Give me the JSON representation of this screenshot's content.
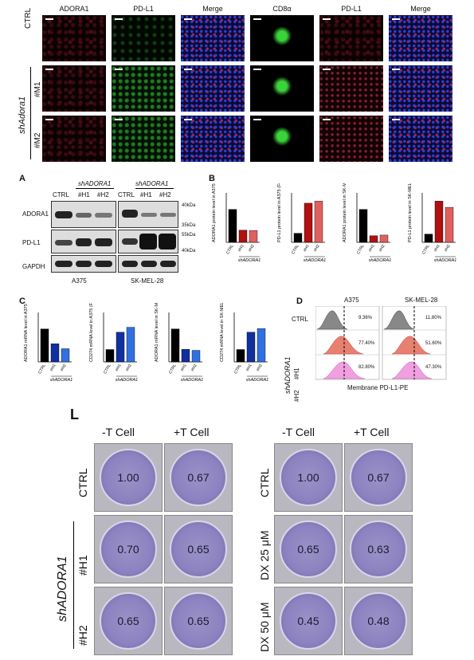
{
  "if_panel": {
    "col_headers": [
      "ADORA1",
      "PD-L1",
      "Merge",
      "CD8α",
      "PD-L1",
      "Merge"
    ],
    "row_labels": [
      "CTRL",
      "#M1",
      "#M2"
    ],
    "group_label": "shAdora1"
  },
  "panel_A": {
    "letter": "A",
    "group1": "shADORA1",
    "group2": "shADORA1",
    "lanes": [
      "CTRL",
      "#H1",
      "#H2",
      "CTRL",
      "#H1",
      "#H2"
    ],
    "rows": [
      "ADORA1",
      "PD-L1",
      "GAPDH"
    ],
    "mw": [
      "40kDa",
      "35kDa",
      "55kDa",
      "40kDa"
    ],
    "cells": [
      "A375",
      "SK-MEL-28"
    ]
  },
  "panel_B": {
    "letter": "B",
    "ylabels": [
      "ADORA1 protein level in A375 (Fold change)",
      "PD-L1 protein level in A375 (Fold change)",
      "ADORA1 protein level in SK-MEL-28 (Fold change)",
      "PD-L1 protein level in SK-MEL-28 (Fold change)"
    ],
    "xlabels": [
      "CTRL",
      "#H1",
      "#H2"
    ],
    "group": "shADORA1"
  },
  "panel_C": {
    "letter": "C",
    "ylabels": [
      "ADORA1 mRNA level in A375 (Fold change)",
      "CD274 mRNA level in A375 (Fold change)",
      "ADORA1 mRNA level in SK-MEL-28 (Fold change)",
      "CD274 mRNA level in SK-MEL-28 (Fold change)"
    ],
    "xlabels": [
      "CTRL",
      "#H1",
      "#H2"
    ],
    "group": "shADORA1"
  },
  "panel_D": {
    "letter": "D",
    "cells": [
      "A375",
      "SK-MEL-28"
    ],
    "rows": [
      "CTRL",
      "#H1",
      "#H2"
    ],
    "group": "shADORA1",
    "pct_a375": [
      "9.36%",
      "77.40%",
      "82.80%"
    ],
    "pct_sk": [
      "11.80%",
      "51.60%",
      "47.30%"
    ],
    "xaxis": "Membrane PD-L1-PE"
  },
  "panel_L": {
    "letter": "L",
    "cols": [
      "-T Cell",
      "+T Cell",
      "-T Cell",
      "+T Cell"
    ],
    "left_rows": [
      "CTRL",
      "#H1",
      "#H2"
    ],
    "left_group": "shADORA1",
    "right_rows": [
      "CTRL",
      "DX 25 μM",
      "DX 50 μM"
    ],
    "left_values": [
      [
        "1.00",
        "0.67"
      ],
      [
        "0.70",
        "0.65"
      ],
      [
        "0.65",
        "0.65"
      ]
    ],
    "right_values": [
      [
        "1.00",
        "0.67"
      ],
      [
        "0.65",
        "0.63"
      ],
      [
        "0.45",
        "0.48"
      ]
    ]
  },
  "chart_data": [
    {
      "type": "bar",
      "categories": [
        "CTRL",
        "#H1",
        "#H2"
      ],
      "values": [
        1.0,
        0.37,
        0.36
      ],
      "ylim": [
        0,
        1.5
      ],
      "colors": [
        "#000000",
        "#b01010",
        "#e06060"
      ]
    },
    {
      "type": "bar",
      "categories": [
        "CTRL",
        "#H1",
        "#H2"
      ],
      "values": [
        0.22,
        0.95,
        1.0
      ],
      "ylim": [
        0,
        1.2
      ],
      "colors": [
        "#000000",
        "#b01010",
        "#e06060"
      ]
    },
    {
      "type": "bar",
      "categories": [
        "CTRL",
        "#H1",
        "#H2"
      ],
      "values": [
        1.0,
        0.2,
        0.22
      ],
      "ylim": [
        0,
        1.5
      ],
      "colors": [
        "#000000",
        "#b01010",
        "#e06060"
      ]
    },
    {
      "type": "bar",
      "categories": [
        "CTRL",
        "#H1",
        "#H2"
      ],
      "values": [
        0.2,
        1.0,
        0.85
      ],
      "ylim": [
        0,
        1.2
      ],
      "colors": [
        "#000000",
        "#b01010",
        "#e06060"
      ]
    },
    {
      "type": "bar",
      "categories": [
        "CTRL",
        "#H1",
        "#H2"
      ],
      "values": [
        1.0,
        0.55,
        0.4
      ],
      "ylim": [
        0,
        1.5
      ],
      "colors": [
        "#000000",
        "#1030a0",
        "#3070e0"
      ]
    },
    {
      "type": "bar",
      "categories": [
        "CTRL",
        "#H1",
        "#H2"
      ],
      "values": [
        1.0,
        2.4,
        2.8
      ],
      "ylim": [
        0,
        4
      ],
      "colors": [
        "#000000",
        "#1030a0",
        "#3070e0"
      ]
    },
    {
      "type": "bar",
      "categories": [
        "CTRL",
        "#H1",
        "#H2"
      ],
      "values": [
        1.0,
        0.38,
        0.35
      ],
      "ylim": [
        0,
        1.5
      ],
      "colors": [
        "#000000",
        "#1030a0",
        "#3070e0"
      ]
    },
    {
      "type": "bar",
      "categories": [
        "CTRL",
        "#H1",
        "#H2"
      ],
      "values": [
        1.0,
        2.4,
        2.7
      ],
      "ylim": [
        0,
        4
      ],
      "colors": [
        "#000000",
        "#1030a0",
        "#3070e0"
      ]
    }
  ]
}
